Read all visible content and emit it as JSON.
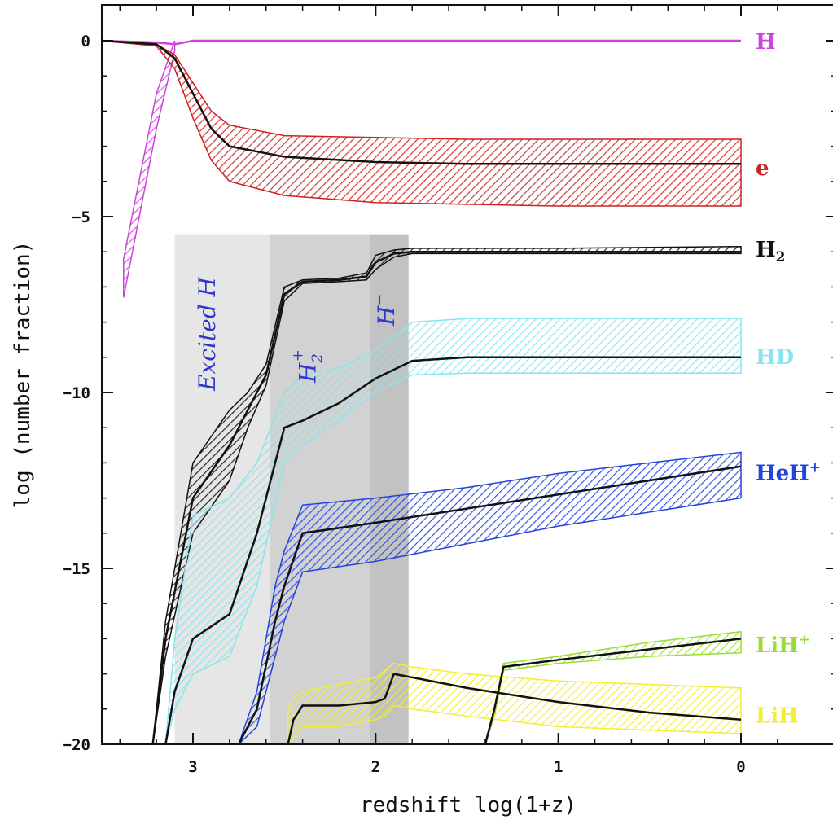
{
  "chart_data": {
    "type": "line",
    "title": "",
    "xlabel": "redshift  log(1+z)",
    "ylabel": "log (number fraction)",
    "xlim": [
      3.5,
      0
    ],
    "ylim": [
      -20,
      1
    ],
    "xticks": [
      3,
      2,
      1,
      0
    ],
    "xtick_labels": [
      "3",
      "2",
      "1",
      "0"
    ],
    "yticks": [
      0,
      -5,
      -10,
      -15,
      -20
    ],
    "ytick_labels": [
      "0",
      "−5",
      "−10",
      "−15",
      "−20"
    ],
    "grid": false,
    "legend": "labels at right end of curves",
    "shaded_regions": [
      {
        "label": "Excited H",
        "x_range": [
          3.1,
          2.58
        ],
        "color": "#e6e6e6"
      },
      {
        "label": "H2+",
        "x_range": [
          2.58,
          2.03
        ],
        "color": "#d2d2d2"
      },
      {
        "label": "H−",
        "x_range": [
          2.03,
          1.82
        ],
        "color": "#c2c2c2"
      }
    ],
    "series": [
      {
        "name": "H",
        "color": "#cc44dd",
        "x": [
          3.5,
          3.2,
          3.1,
          3.0,
          2.0,
          0
        ],
        "y": [
          0,
          -0.05,
          -0.1,
          0,
          0,
          0
        ],
        "band_x": [
          3.38,
          3.2,
          3.1
        ],
        "band_upper": [
          -6.2,
          -1.5,
          0
        ],
        "band_lower": [
          -7.3,
          -2.5,
          -0.3
        ]
      },
      {
        "name": "e",
        "color": "#cc2222",
        "x": [
          3.5,
          3.2,
          3.1,
          3.0,
          2.9,
          2.8,
          2.5,
          2.0,
          1.5,
          1.0,
          0.5,
          0
        ],
        "y": [
          0,
          -0.1,
          -0.5,
          -1.5,
          -2.5,
          -3.0,
          -3.3,
          -3.45,
          -3.5,
          -3.5,
          -3.5,
          -3.5
        ],
        "band_upper": [
          0,
          -0.1,
          -0.4,
          -1.2,
          -2.0,
          -2.4,
          -2.7,
          -2.75,
          -2.8,
          -2.8,
          -2.8,
          -2.8
        ],
        "band_lower": [
          0,
          -0.15,
          -0.8,
          -2.2,
          -3.4,
          -4.0,
          -4.4,
          -4.6,
          -4.65,
          -4.7,
          -4.7,
          -4.7
        ]
      },
      {
        "name": "H2",
        "color": "#111111",
        "x": [
          3.22,
          3.15,
          3.0,
          2.8,
          2.7,
          2.6,
          2.5,
          2.4,
          2.2,
          2.05,
          2.0,
          1.9,
          1.8,
          1.0,
          0
        ],
        "y": [
          -20,
          -17,
          -13,
          -11.5,
          -10.5,
          -9.5,
          -7.2,
          -6.85,
          -6.8,
          -6.7,
          -6.3,
          -6.05,
          -6.0,
          -6.0,
          -6.0
        ],
        "band_upper": [
          -20,
          -16.5,
          -12,
          -10.5,
          -10,
          -9.2,
          -7,
          -6.8,
          -6.75,
          -6.6,
          -6.1,
          -5.95,
          -5.9,
          -5.9,
          -5.85
        ],
        "band_lower": [
          -20,
          -17.5,
          -14,
          -12.5,
          -11,
          -9.8,
          -7.4,
          -6.9,
          -6.85,
          -6.8,
          -6.5,
          -6.15,
          -6.05,
          -6.05,
          -6.05
        ]
      },
      {
        "name": "HD",
        "color": "#88e4ee",
        "x": [
          3.15,
          3.1,
          3.0,
          2.8,
          2.65,
          2.5,
          2.4,
          2.2,
          2.0,
          1.8,
          1.5,
          1.0,
          0
        ],
        "y": [
          -20,
          -18.5,
          -17,
          -16.3,
          -14,
          -11,
          -10.8,
          -10.3,
          -9.6,
          -9.1,
          -9.0,
          -9.0,
          -9.0
        ],
        "band_upper": [
          -20,
          -17,
          -13.5,
          -13,
          -12,
          -10,
          -9.5,
          -9.3,
          -8.8,
          -8.0,
          -7.9,
          -7.9,
          -7.9
        ],
        "band_lower": [
          -20,
          -19,
          -18,
          -17.5,
          -15.5,
          -12,
          -11.5,
          -10.8,
          -10,
          -9.5,
          -9.45,
          -9.45,
          -9.45
        ]
      },
      {
        "name": "HeH+",
        "color": "#2244dd",
        "x": [
          2.75,
          2.65,
          2.55,
          2.5,
          2.4,
          2.0,
          1.5,
          1.0,
          0.5,
          0
        ],
        "y": [
          -20,
          -19,
          -16.5,
          -15.5,
          -14.0,
          -13.7,
          -13.3,
          -12.9,
          -12.5,
          -12.1
        ],
        "band_upper": [
          -20,
          -18.5,
          -15.5,
          -14.5,
          -13.2,
          -13.0,
          -12.7,
          -12.3,
          -12.0,
          -11.7
        ],
        "band_lower": [
          -20,
          -19.5,
          -17.5,
          -16.5,
          -15.1,
          -14.8,
          -14.3,
          -13.8,
          -13.4,
          -13.0
        ]
      },
      {
        "name": "LiH+",
        "color": "#99dd33",
        "x": [
          1.4,
          1.35,
          1.3,
          1.0,
          0.5,
          0
        ],
        "y": [
          -20,
          -19,
          -17.8,
          -17.6,
          -17.3,
          -17.0
        ],
        "band_upper": [
          -20,
          -19,
          -17.7,
          -17.5,
          -17.1,
          -16.8
        ],
        "band_lower": [
          -20,
          -19.2,
          -17.9,
          -17.7,
          -17.5,
          -17.4
        ]
      },
      {
        "name": "LiH",
        "color": "#f2ee33",
        "x": [
          2.48,
          2.45,
          2.4,
          2.2,
          2.0,
          1.95,
          1.9,
          1.8,
          1.5,
          1.0,
          0.5,
          0
        ],
        "y": [
          -20,
          -19.3,
          -18.9,
          -18.9,
          -18.8,
          -18.7,
          -18.0,
          -18.1,
          -18.4,
          -18.8,
          -19.1,
          -19.3
        ],
        "band_upper": [
          -19.0,
          -18.7,
          -18.5,
          -18.3,
          -18.1,
          -17.9,
          -17.7,
          -17.8,
          -18.0,
          -18.2,
          -18.3,
          -18.4
        ],
        "band_lower": [
          -20,
          -19.8,
          -19.5,
          -19.5,
          -19.3,
          -19.2,
          -18.9,
          -19.0,
          -19.2,
          -19.5,
          -19.6,
          -19.7
        ]
      }
    ],
    "labels": {
      "H": "H",
      "e": "e",
      "H2_base": "H",
      "H2_sub": "2",
      "HD": "HD",
      "HeH_base": "HeH",
      "HeH_sup": "+",
      "LiHp_base": "LiH",
      "LiHp_sup": "+",
      "LiH": "LiH",
      "excited": "Excited H",
      "h2p_base": "H",
      "h2p_sub": "2",
      "h2p_sup": "+",
      "hminus_base": "H",
      "hminus_sup": "−"
    }
  }
}
